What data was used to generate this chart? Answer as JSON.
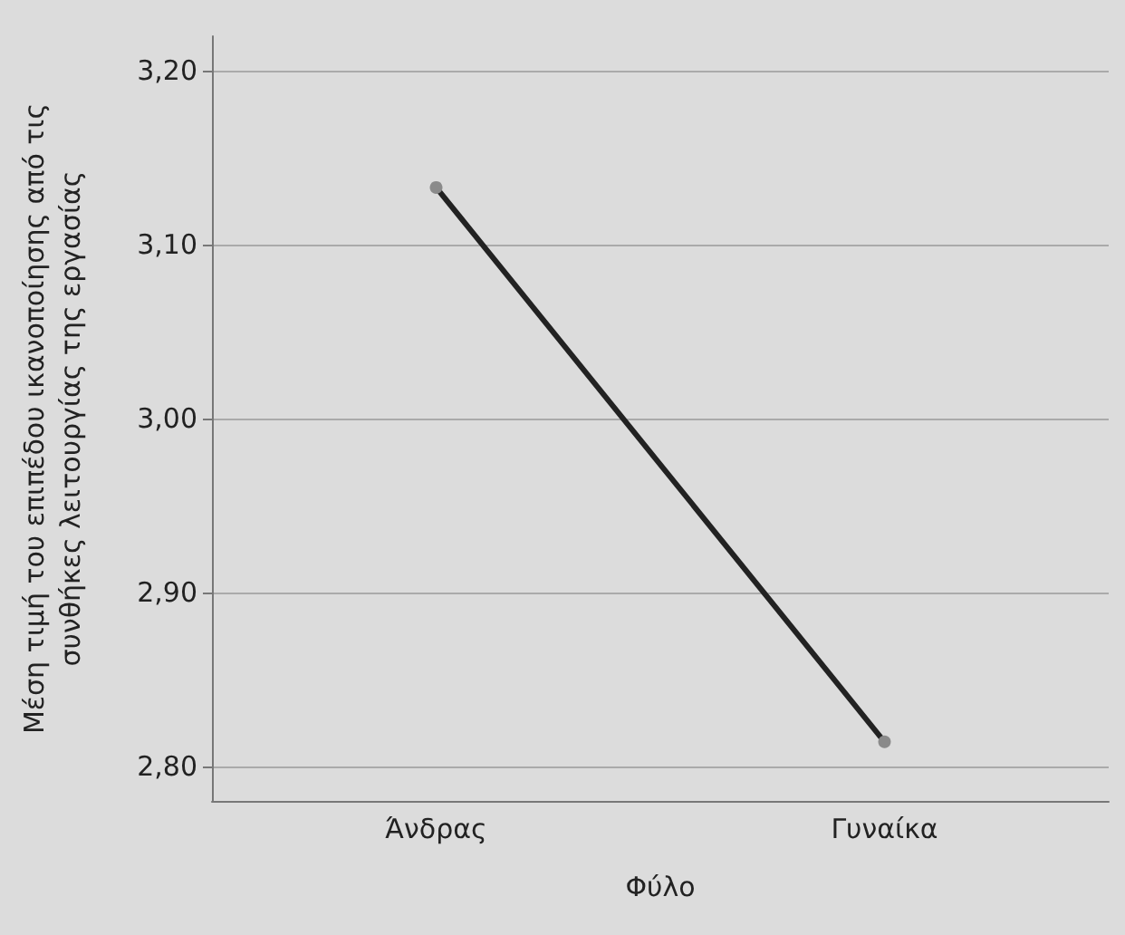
{
  "chart_data": {
    "type": "line",
    "xlabel": "Φύλο",
    "ylabel": "Μέση τιμή του επιπέδου ικανοποίησης από τις\nσυνθήκες λειτουργίας της εργασίας",
    "categories": [
      "Άνδρας",
      "Γυναίκα"
    ],
    "series": [
      {
        "color": "#222222",
        "values": [
          3.133,
          2.814
        ]
      }
    ],
    "ylim": [
      2.78,
      3.22
    ],
    "yticks": [
      {
        "value": 2.8,
        "label": "2,80"
      },
      {
        "value": 2.9,
        "label": "2,90"
      },
      {
        "value": 3.0,
        "label": "3,00"
      },
      {
        "value": 3.1,
        "label": "3,10"
      },
      {
        "value": 3.2,
        "label": "3,20"
      }
    ],
    "grid": "y",
    "marker": "circle",
    "line_style": "solid"
  }
}
